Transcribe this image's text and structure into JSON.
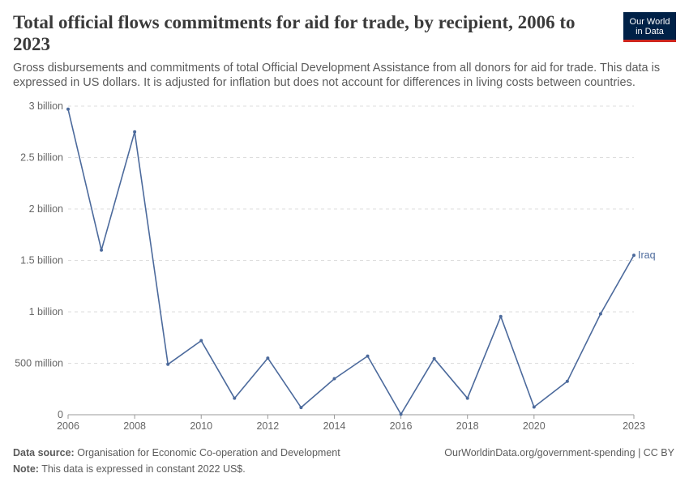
{
  "header": {
    "title": "Total official flows commitments for aid for trade, by recipient, 2006 to 2023",
    "subtitle": "Gross disbursements and commitments of total Official Development Assistance from all donors for aid for trade. This data is expressed in US dollars. It is adjusted for inflation but does not account for differences in living costs between countries."
  },
  "logo": {
    "line1": "Our World",
    "line2": "in Data"
  },
  "footer": {
    "source_label": "Data source:",
    "source_text": "Organisation for Economic Co-operation and Development",
    "note_label": "Note:",
    "note_text": "This data is expressed in constant 2022 US$.",
    "credit": "OurWorldinData.org/government-spending | CC BY"
  },
  "colors": {
    "series": "#4c6a9c",
    "grid": "#dddddd",
    "axis": "#999999"
  },
  "chart_data": {
    "type": "line",
    "title": "Total official flows commitments for aid for trade, by recipient, 2006 to 2023",
    "xlabel": "",
    "ylabel": "",
    "xlim": [
      2006,
      2023
    ],
    "ylim": [
      0,
      3000000000
    ],
    "x_ticks": [
      2006,
      2008,
      2010,
      2012,
      2014,
      2016,
      2018,
      2020,
      2023
    ],
    "x_tick_labels": [
      "2006",
      "2008",
      "2010",
      "2012",
      "2014",
      "2016",
      "2018",
      "2020",
      "2023"
    ],
    "y_ticks": [
      0,
      500000000,
      1000000000,
      1500000000,
      2000000000,
      2500000000,
      3000000000
    ],
    "y_tick_labels": [
      "0",
      "500 million",
      "1 billion",
      "1.5 billion",
      "2 billion",
      "2.5 billion",
      "3 billion"
    ],
    "grid": true,
    "series": [
      {
        "name": "Iraq",
        "x": [
          2006,
          2007,
          2008,
          2009,
          2010,
          2011,
          2012,
          2013,
          2014,
          2015,
          2016,
          2017,
          2018,
          2019,
          2020,
          2021,
          2022,
          2023
        ],
        "values": [
          2970000000,
          1600000000,
          2750000000,
          490000000,
          720000000,
          160000000,
          550000000,
          70000000,
          350000000,
          570000000,
          5000000,
          545000000,
          160000000,
          955000000,
          75000000,
          325000000,
          980000000,
          1550000000
        ]
      }
    ]
  }
}
